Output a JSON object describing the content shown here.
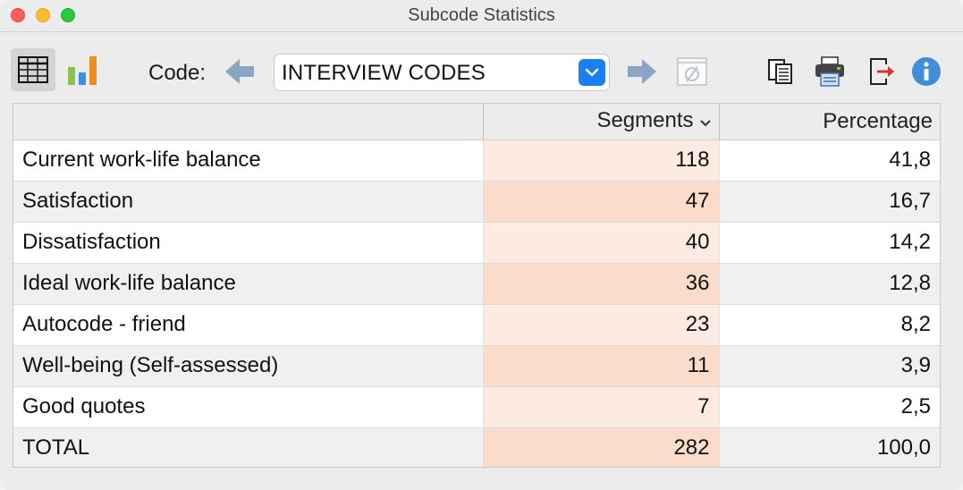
{
  "window": {
    "title": "Subcode Statistics"
  },
  "toolbar": {
    "code_label": "Code:",
    "code_value": "INTERVIEW CODES"
  },
  "table": {
    "columns": [
      "",
      "Segments",
      "Percentage"
    ],
    "rows": [
      {
        "name": "Current work-life balance",
        "segments": "118",
        "percentage": "41,8"
      },
      {
        "name": "Satisfaction",
        "segments": "47",
        "percentage": "16,7"
      },
      {
        "name": "Dissatisfaction",
        "segments": "40",
        "percentage": "14,2"
      },
      {
        "name": "Ideal work-life balance",
        "segments": "36",
        "percentage": "12,8"
      },
      {
        "name": "Autocode - friend",
        "segments": "23",
        "percentage": "8,2"
      },
      {
        "name": "Well-being (Self-assessed)",
        "segments": "11",
        "percentage": "3,9"
      },
      {
        "name": "Good quotes",
        "segments": "7",
        "percentage": "2,5"
      },
      {
        "name": "TOTAL",
        "segments": "282",
        "percentage": "100,0"
      }
    ]
  },
  "icons": {
    "table_view": "grid-icon",
    "chart_view": "bar-chart-icon",
    "previous": "arrow-left-icon",
    "next": "arrow-right-icon",
    "dropdown": "chevron-down-icon",
    "reset": "null-set-icon",
    "copy": "copy-icon",
    "print": "printer-icon",
    "export": "export-icon",
    "info": "info-icon"
  },
  "colors": {
    "accent": "#1a7ff2",
    "segments_highlight_light": "#fdebe1",
    "segments_highlight_dark": "#fbdccb",
    "export_red": "#e0321f"
  }
}
